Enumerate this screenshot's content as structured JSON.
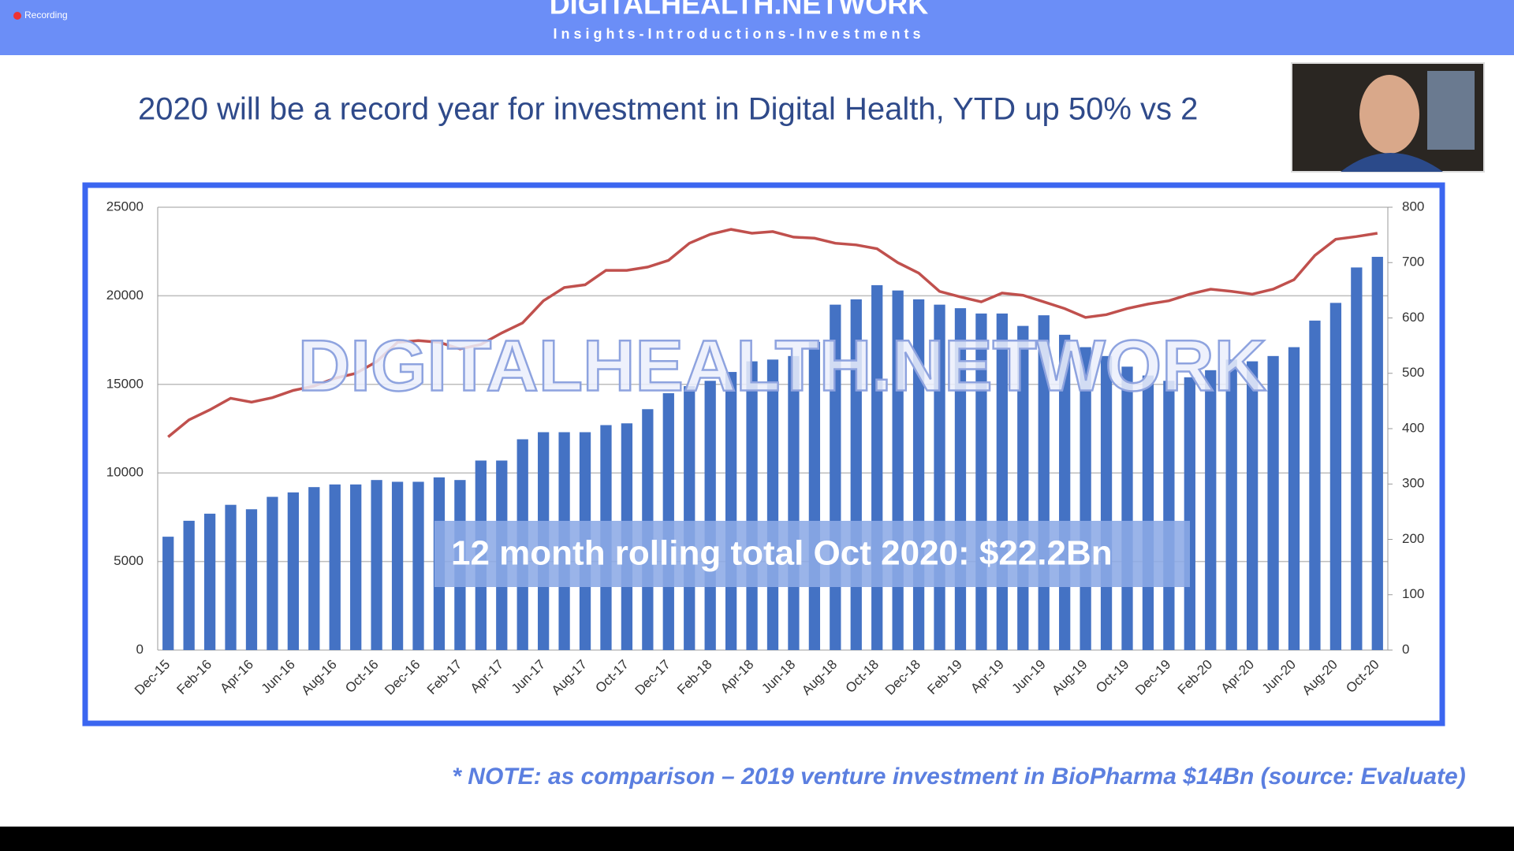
{
  "header": {
    "recording": "Recording",
    "logo": "DIGITALHEALTH.NETWORK",
    "tagline": "Insights-Introductions-Investments"
  },
  "chart_data": {
    "type": "bar",
    "title": "2020 will be a record year for investment in Digital Health, YTD up 50% vs 2",
    "categories": [
      "Dec-15",
      null,
      "Feb-16",
      null,
      "Apr-16",
      null,
      "Jun-16",
      null,
      "Aug-16",
      null,
      "Oct-16",
      null,
      "Dec-16",
      null,
      "Feb-17",
      null,
      "Apr-17",
      null,
      "Jun-17",
      null,
      "Aug-17",
      null,
      "Oct-17",
      null,
      "Dec-17",
      null,
      "Feb-18",
      null,
      "Apr-18",
      null,
      "Jun-18",
      null,
      "Aug-18",
      null,
      "Oct-18",
      null,
      "Dec-18",
      null,
      "Feb-19",
      null,
      "Apr-19",
      null,
      "Jun-19",
      null,
      "Aug-19",
      null,
      "Oct-19",
      null,
      "Dec-19",
      null,
      "Feb-20",
      null,
      "Apr-20",
      null,
      "Jun-20",
      null,
      "Aug-20",
      null,
      "Oct-20"
    ],
    "series": [
      {
        "type": "bar",
        "color": "#4472c4",
        "values": [
          6400,
          7300,
          7700,
          8200,
          7950,
          8650,
          8900,
          9200,
          9350,
          9350,
          9600,
          9500,
          9500,
          9750,
          9600,
          10700,
          10700,
          11900,
          12300,
          12300,
          12300,
          12700,
          12800,
          13600,
          14500,
          14900,
          15200,
          15700,
          16300,
          16400,
          16600,
          17400,
          19500,
          19800,
          20600,
          20300,
          19800,
          19500,
          19300,
          19000,
          19000,
          18300,
          18900,
          17800,
          17100,
          16600,
          16000,
          15500,
          15200,
          15400,
          15800,
          16400,
          16300,
          16600,
          17100,
          18600,
          19600,
          21600,
          22200
        ]
      },
      {
        "type": "line",
        "axis": "y2",
        "color": "#c0504d",
        "values": [
          385,
          416,
          434,
          455,
          448,
          456,
          469,
          477,
          491,
          500,
          521,
          556,
          559,
          556,
          544,
          552,
          573,
          591,
          631,
          655,
          660,
          686,
          686,
          692,
          704,
          735,
          751,
          760,
          753,
          756,
          746,
          744,
          735,
          732,
          725,
          700,
          681,
          648,
          638,
          629,
          645,
          641,
          629,
          617,
          601,
          606,
          617,
          625,
          631,
          643,
          652,
          648,
          643,
          652,
          669,
          713,
          742,
          747,
          753
        ]
      }
    ],
    "ylim": [
      0,
      25000
    ],
    "yticks": [
      0,
      5000,
      10000,
      15000,
      20000,
      25000
    ],
    "y2lim": [
      0,
      800
    ],
    "y2ticks": [
      0,
      100,
      200,
      300,
      400,
      500,
      600,
      700,
      800
    ],
    "grid": true,
    "annotations": [
      "DIGITALHEALTH.NETWORK",
      "12 month rolling total Oct 2020: $22.2Bn"
    ]
  },
  "note": "* NOTE: as comparison – 2019 venture investment in BioPharma $14Bn (source: Evaluate)"
}
